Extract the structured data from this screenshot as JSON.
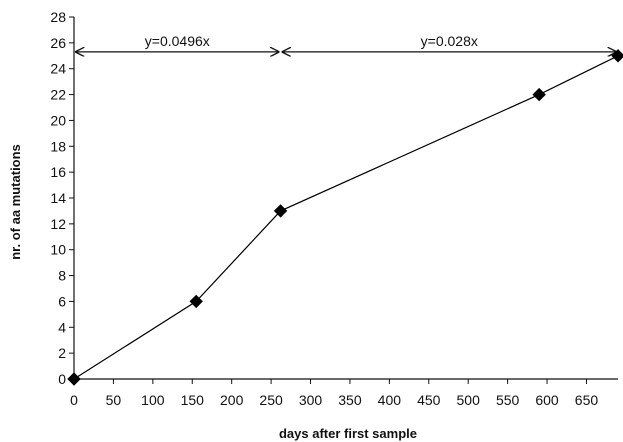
{
  "chart_data": {
    "type": "line",
    "title": "",
    "xlabel": "days after first sample",
    "ylabel": "nr. of aa mutations",
    "xlim": [
      0,
      690
    ],
    "ylim": [
      0,
      28
    ],
    "x_ticks": [
      0,
      50,
      100,
      150,
      200,
      250,
      300,
      350,
      400,
      450,
      500,
      550,
      600,
      650
    ],
    "y_ticks": [
      0,
      2,
      4,
      6,
      8,
      10,
      12,
      14,
      16,
      18,
      20,
      22,
      24,
      26,
      28
    ],
    "grid": false,
    "legend": "none",
    "series": [
      {
        "x": [
          0,
          155,
          262,
          590,
          690
        ],
        "y": [
          0,
          6,
          13,
          22,
          25
        ],
        "marker": "diamond",
        "color": "#000000"
      }
    ],
    "annotations": [
      {
        "text": "y=0.0496x",
        "range_x": [
          0,
          262
        ],
        "y": 25.3,
        "type": "double-arrow"
      },
      {
        "text": "y=0.028x",
        "range_x": [
          262,
          690
        ],
        "y": 25.3,
        "type": "double-arrow"
      }
    ]
  }
}
